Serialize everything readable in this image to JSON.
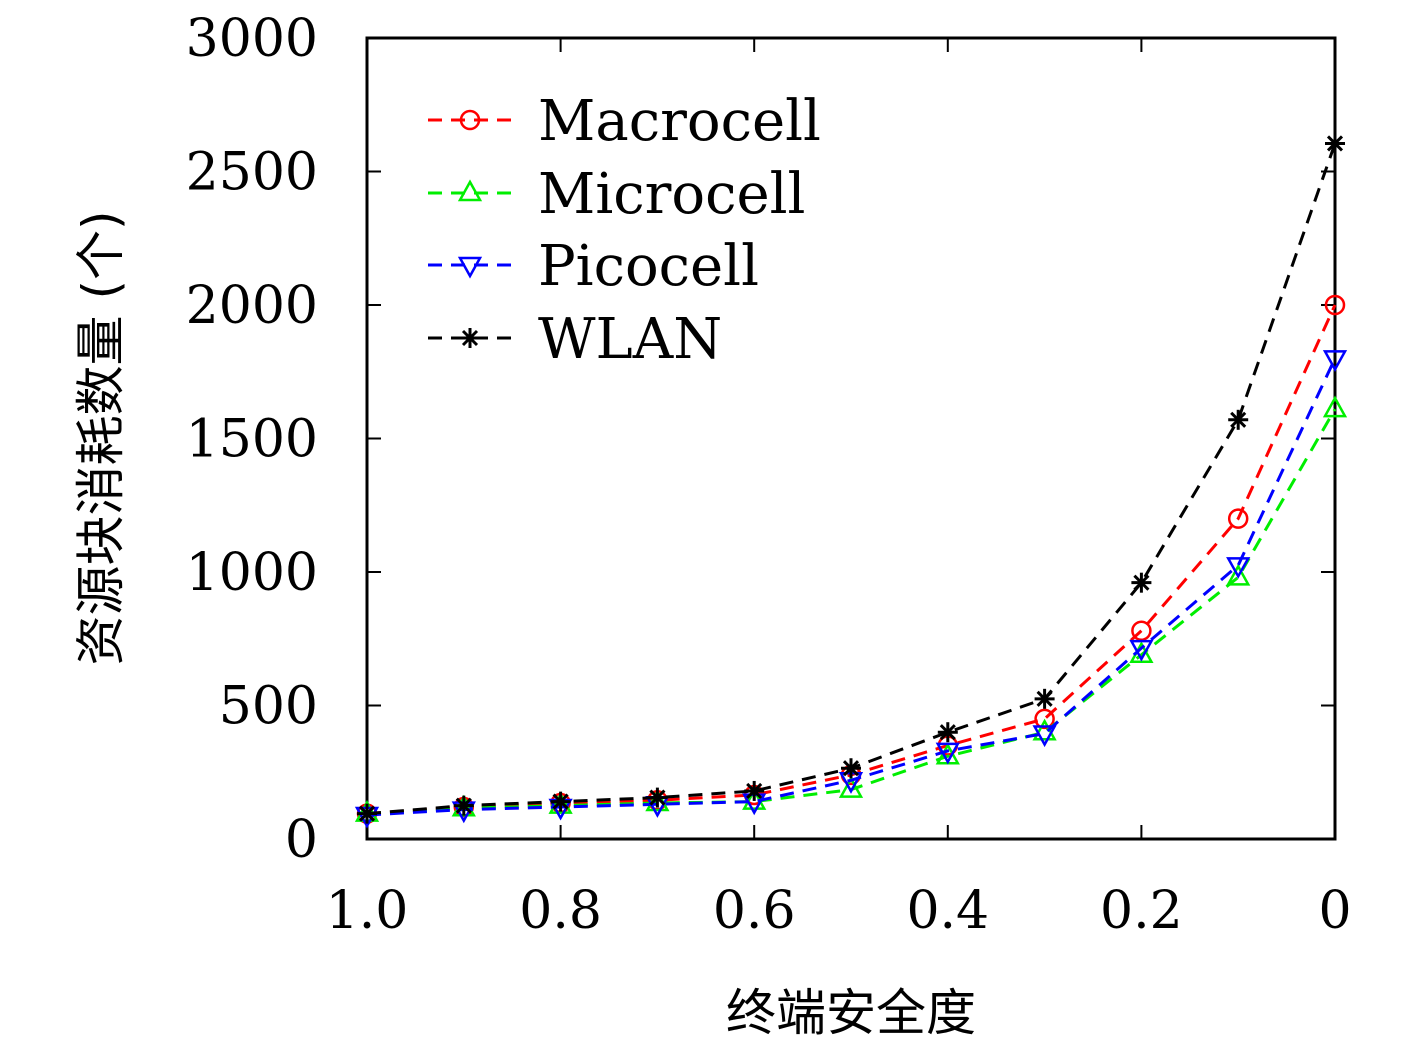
{
  "chart_data": {
    "type": "line",
    "xlabel": "终端安全度",
    "ylabel": "资源块消耗数量 (个)",
    "x": [
      1.0,
      0.9,
      0.8,
      0.7,
      0.6,
      0.5,
      0.4,
      0.3,
      0.2,
      0.1,
      0
    ],
    "xlim": [
      1.0,
      0
    ],
    "ylim": [
      0,
      3000
    ],
    "x_ticks": [
      1.0,
      0.8,
      0.6,
      0.4,
      0.2,
      0
    ],
    "x_tick_labels": [
      "1.0",
      "0.8",
      "0.6",
      "0.4",
      "0.2",
      "0"
    ],
    "y_ticks": [
      0,
      500,
      1000,
      1500,
      2000,
      2500,
      3000
    ],
    "y_tick_labels": [
      "0",
      "500",
      "1000",
      "1500",
      "2000",
      "2500",
      "3000"
    ],
    "grid": false,
    "legend_position": "top-left",
    "series": [
      {
        "name": "Macrocell",
        "color": "#ff0000",
        "marker": "circle",
        "values": [
          95,
          120,
          135,
          145,
          165,
          240,
          350,
          450,
          780,
          1200,
          2000
        ]
      },
      {
        "name": "Microcell",
        "color": "#00ee00",
        "marker": "triangle-up",
        "values": [
          95,
          115,
          125,
          135,
          140,
          185,
          310,
          400,
          690,
          980,
          1610
        ]
      },
      {
        "name": "Picocell",
        "color": "#0000ff",
        "marker": "triangle-down",
        "values": [
          90,
          110,
          120,
          130,
          140,
          220,
          330,
          395,
          715,
          1025,
          1800
        ]
      },
      {
        "name": "WLAN",
        "color": "#000000",
        "marker": "asterisk",
        "values": [
          95,
          125,
          140,
          155,
          180,
          265,
          400,
          525,
          960,
          1570,
          2605
        ]
      }
    ]
  }
}
